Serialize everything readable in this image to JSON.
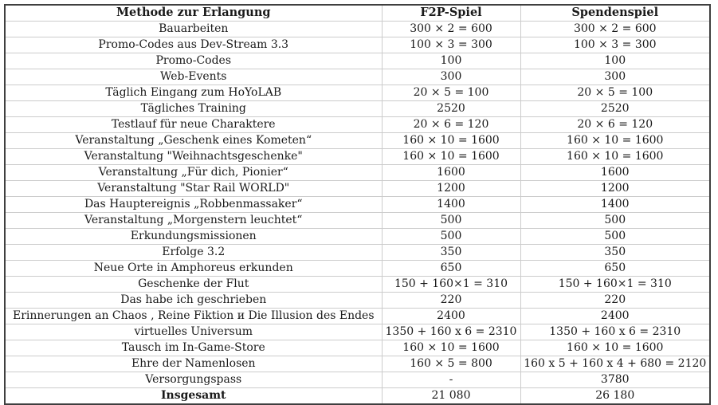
{
  "table": {
    "headers": [
      "Methode zur Erlangung",
      "F2P-Spiel",
      "Spendenspiel"
    ],
    "rows": [
      {
        "cells": [
          "Bauarbeiten",
          "300 × 2 = 600",
          "300 × 2 = 600"
        ],
        "bold_method": false
      },
      {
        "cells": [
          "Promo-Codes aus Dev-Stream 3.3",
          "100 × 3 = 300",
          "100 × 3 = 300"
        ],
        "bold_method": false
      },
      {
        "cells": [
          "Promo-Codes",
          "100",
          "100"
        ],
        "bold_method": false
      },
      {
        "cells": [
          "Web-Events",
          "300",
          "300"
        ],
        "bold_method": false
      },
      {
        "cells": [
          "Täglich Eingang zum HoYoLAB",
          "20 × 5 = 100",
          "20 × 5 = 100"
        ],
        "bold_method": false
      },
      {
        "cells": [
          "Tägliches Training",
          "2520",
          "2520"
        ],
        "bold_method": false
      },
      {
        "cells": [
          "Testlauf für neue Charaktere",
          "20 × 6 = 120",
          "20 × 6 = 120"
        ],
        "bold_method": false
      },
      {
        "cells": [
          "Veranstaltung „Geschenk eines Kometen“",
          "160 × 10 = 1600",
          "160 × 10 = 1600"
        ],
        "bold_method": false
      },
      {
        "cells": [
          "Veranstaltung \"Weihnachtsgeschenke\"",
          "160 × 10 = 1600",
          "160 × 10 = 1600"
        ],
        "bold_method": false
      },
      {
        "cells": [
          "Veranstaltung „Für dich, Pionier“",
          "1600",
          "1600"
        ],
        "bold_method": false
      },
      {
        "cells": [
          "Veranstaltung \"Star Rail WORLD\"",
          "1200",
          "1200"
        ],
        "bold_method": false
      },
      {
        "cells": [
          "Das Hauptereignis „Robbenmassaker“",
          "1400",
          "1400"
        ],
        "bold_method": false
      },
      {
        "cells": [
          "Veranstaltung „Morgenstern leuchtet“",
          "500",
          "500"
        ],
        "bold_method": false
      },
      {
        "cells": [
          "Erkundungsmissionen",
          "500",
          "500"
        ],
        "bold_method": false
      },
      {
        "cells": [
          "Erfolge 3.2",
          "350",
          "350"
        ],
        "bold_method": false
      },
      {
        "cells": [
          "Neue Orte in Amphoreus erkunden",
          "650",
          "650"
        ],
        "bold_method": false
      },
      {
        "cells": [
          "Geschenke der Flut",
          "150 + 160×1 = 310",
          "150 + 160×1 = 310"
        ],
        "bold_method": false
      },
      {
        "cells": [
          "Das habe ich geschrieben",
          "220",
          "220"
        ],
        "bold_method": false
      },
      {
        "cells": [
          "Erinnerungen an Chaos , Reine Fiktion и Die Illusion des Endes",
          "2400",
          "2400"
        ],
        "bold_method": false
      },
      {
        "cells": [
          "virtuelles Universum",
          "1350 + 160 x 6 = 2310",
          "1350 + 160 x 6 = 2310"
        ],
        "bold_method": false
      },
      {
        "cells": [
          "Tausch im In-Game-Store",
          "160 × 10 = 1600",
          "160 × 10 = 1600"
        ],
        "bold_method": false
      },
      {
        "cells": [
          "Ehre der Namenlosen",
          "160 × 5 = 800",
          "160 x 5 + 160 x 4 + 680 = 2120"
        ],
        "bold_method": false
      },
      {
        "cells": [
          "Versorgungspass",
          "-",
          "3780"
        ],
        "bold_method": false
      },
      {
        "cells": [
          "Insgesamt",
          "21 080",
          "26 180"
        ],
        "bold_method": true
      }
    ]
  },
  "colors": {
    "outer_border": "#3f3f3f",
    "inner_border": "#cccccc",
    "background": "#ffffff",
    "text": "#1a1a1a"
  }
}
